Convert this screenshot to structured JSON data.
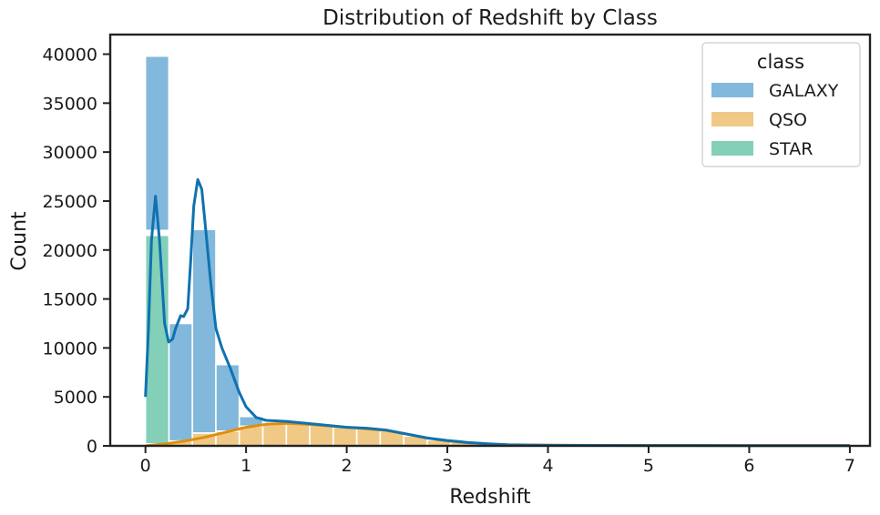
{
  "chart_data": {
    "type": "bar",
    "title": "Distribution of Redshift by Class",
    "xlabel": "Redshift",
    "ylabel": "Count",
    "xlim": [
      -0.35,
      7.2
    ],
    "ylim": [
      0,
      42000
    ],
    "xticks": [
      0,
      1,
      2,
      3,
      4,
      5,
      6,
      7
    ],
    "yticks": [
      0,
      5000,
      10000,
      15000,
      20000,
      25000,
      30000,
      35000,
      40000
    ],
    "bin_width": 0.233,
    "legend": {
      "title": "class",
      "placement": "top-right"
    },
    "series": [
      {
        "name": "GALAXY",
        "color": "#82b8db",
        "line_color": "#0f72b0",
        "bins": [
          {
            "x0": 0.0,
            "y0": 22000,
            "y1": 39800
          },
          {
            "x0": 0.233,
            "y0": 0,
            "y1": 12500
          },
          {
            "x0": 0.467,
            "y0": 1300,
            "y1": 22100
          },
          {
            "x0": 0.7,
            "y0": 1500,
            "y1": 8300
          },
          {
            "x0": 0.933,
            "y0": 2000,
            "y1": 3000
          }
        ],
        "kde": [
          [
            0,
            5000
          ],
          [
            0.03,
            12000
          ],
          [
            0.06,
            21000
          ],
          [
            0.1,
            25500
          ],
          [
            0.14,
            21000
          ],
          [
            0.19,
            12500
          ],
          [
            0.23,
            10600
          ],
          [
            0.27,
            10900
          ],
          [
            0.3,
            12000
          ],
          [
            0.35,
            13300
          ],
          [
            0.38,
            13200
          ],
          [
            0.42,
            14000
          ],
          [
            0.45,
            19000
          ],
          [
            0.48,
            24500
          ],
          [
            0.52,
            27200
          ],
          [
            0.56,
            26200
          ],
          [
            0.6,
            22000
          ],
          [
            0.65,
            16500
          ],
          [
            0.7,
            12000
          ],
          [
            0.76,
            10000
          ],
          [
            0.84,
            8000
          ],
          [
            0.93,
            5500
          ],
          [
            1.0,
            4000
          ],
          [
            1.1,
            2900
          ],
          [
            1.2,
            2600
          ],
          [
            1.4,
            2500
          ],
          [
            1.6,
            2300
          ],
          [
            1.8,
            2100
          ],
          [
            2.0,
            1900
          ],
          [
            2.2,
            1800
          ],
          [
            2.4,
            1600
          ],
          [
            2.6,
            1200
          ],
          [
            2.8,
            800
          ],
          [
            3.0,
            550
          ],
          [
            3.2,
            350
          ],
          [
            3.4,
            200
          ],
          [
            3.6,
            100
          ],
          [
            4.0,
            60
          ],
          [
            5.0,
            40
          ],
          [
            6.0,
            30
          ],
          [
            7.0,
            30
          ]
        ]
      },
      {
        "name": "QSO",
        "color": "#f0c986",
        "line_color": "#de8f0a",
        "bins": [
          {
            "x0": 0.0,
            "y0": 0,
            "y1": 200
          },
          {
            "x0": 0.233,
            "y0": 0,
            "y1": 500
          },
          {
            "x0": 0.467,
            "y0": 0,
            "y1": 1300
          },
          {
            "x0": 0.7,
            "y0": 0,
            "y1": 1500
          },
          {
            "x0": 0.933,
            "y0": 0,
            "y1": 2000
          },
          {
            "x0": 1.167,
            "y0": 0,
            "y1": 2300
          },
          {
            "x0": 1.4,
            "y0": 0,
            "y1": 2300
          },
          {
            "x0": 1.633,
            "y0": 0,
            "y1": 2100
          },
          {
            "x0": 1.867,
            "y0": 0,
            "y1": 1900
          },
          {
            "x0": 2.1,
            "y0": 0,
            "y1": 1800
          },
          {
            "x0": 2.333,
            "y0": 0,
            "y1": 1500
          },
          {
            "x0": 2.567,
            "y0": 0,
            "y1": 1000
          },
          {
            "x0": 2.8,
            "y0": 0,
            "y1": 600
          },
          {
            "x0": 3.033,
            "y0": 0,
            "y1": 350
          },
          {
            "x0": 3.267,
            "y0": 0,
            "y1": 200
          },
          {
            "x0": 3.5,
            "y0": 0,
            "y1": 120
          },
          {
            "x0": 3.733,
            "y0": 0,
            "y1": 80
          },
          {
            "x0": 3.967,
            "y0": 0,
            "y1": 60
          },
          {
            "x0": 4.2,
            "y0": 0,
            "y1": 50
          },
          {
            "x0": 4.433,
            "y0": 0,
            "y1": 40
          },
          {
            "x0": 4.667,
            "y0": 0,
            "y1": 30
          },
          {
            "x0": 4.9,
            "y0": 0,
            "y1": 30
          },
          {
            "x0": 5.133,
            "y0": 0,
            "y1": 25
          },
          {
            "x0": 5.367,
            "y0": 0,
            "y1": 25
          },
          {
            "x0": 5.6,
            "y0": 0,
            "y1": 20
          },
          {
            "x0": 5.833,
            "y0": 0,
            "y1": 20
          },
          {
            "x0": 6.067,
            "y0": 0,
            "y1": 15
          },
          {
            "x0": 6.3,
            "y0": 0,
            "y1": 15
          },
          {
            "x0": 6.533,
            "y0": 0,
            "y1": 15
          },
          {
            "x0": 6.767,
            "y0": 0,
            "y1": 15
          }
        ],
        "kde": [
          [
            0,
            0
          ],
          [
            0.2,
            200
          ],
          [
            0.4,
            500
          ],
          [
            0.6,
            900
          ],
          [
            0.8,
            1400
          ],
          [
            1.0,
            1900
          ],
          [
            1.2,
            2200
          ],
          [
            1.4,
            2300
          ],
          [
            1.6,
            2200
          ],
          [
            1.8,
            2050
          ],
          [
            2.0,
            1900
          ],
          [
            2.2,
            1750
          ],
          [
            2.4,
            1550
          ],
          [
            2.6,
            1200
          ],
          [
            2.8,
            800
          ],
          [
            3.0,
            500
          ],
          [
            3.2,
            320
          ],
          [
            3.4,
            200
          ],
          [
            3.6,
            120
          ],
          [
            4.0,
            70
          ],
          [
            5.0,
            40
          ],
          [
            6.0,
            30
          ],
          [
            7.0,
            30
          ]
        ]
      },
      {
        "name": "STAR",
        "color": "#83cfb8",
        "line_color": "#139a74",
        "bins": [
          {
            "x0": 0.0,
            "y0": 200,
            "y1": 21500
          }
        ],
        "kde": []
      }
    ]
  }
}
